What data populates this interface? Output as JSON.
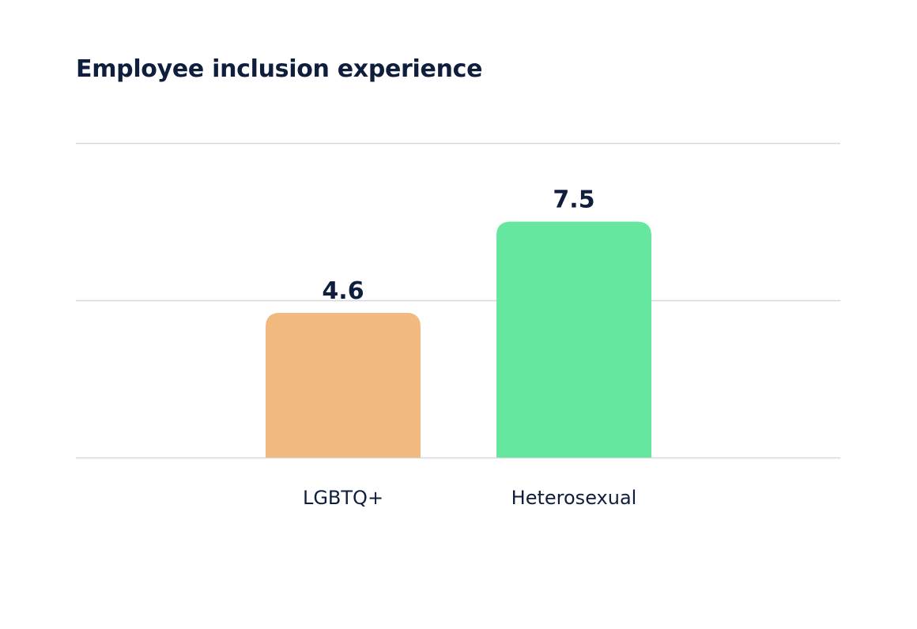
{
  "chart_data": {
    "type": "bar",
    "title": "Employee inclusion experience",
    "categories": [
      "LGBTQ+",
      "Heterosexual"
    ],
    "values": [
      4.6,
      7.5
    ],
    "value_labels": [
      "4.6",
      "7.5"
    ],
    "colors": [
      "#f2b87a",
      "#61e69d"
    ],
    "ylim": [
      0,
      10
    ],
    "grid": true,
    "gridline_values": [
      0,
      5,
      10
    ],
    "xlabel": "",
    "ylabel": ""
  },
  "colors": {
    "text": "#0f1e3d",
    "grid": "#d5d8dd"
  }
}
